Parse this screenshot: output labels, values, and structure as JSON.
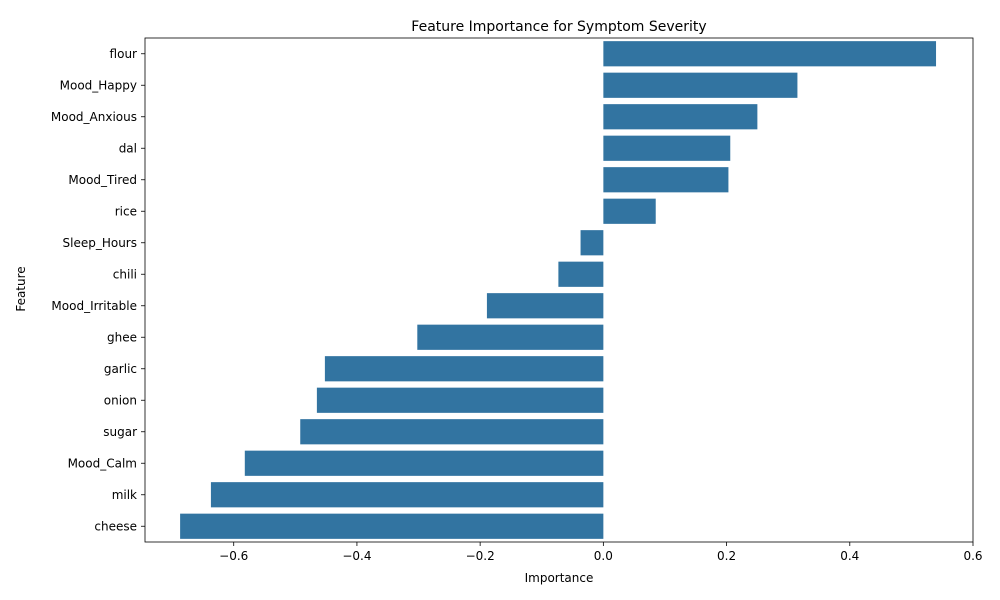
{
  "chart_data": {
    "type": "bar",
    "orientation": "horizontal",
    "title": "Feature Importance for Symptom Severity",
    "xlabel": "Importance",
    "ylabel": "Feature",
    "categories": [
      "flour",
      "Mood_Happy",
      "Mood_Anxious",
      "dal",
      "Mood_Tired",
      "rice",
      "Sleep_Hours",
      "chili",
      "Mood_Irritable",
      "ghee",
      "garlic",
      "onion",
      "sugar",
      "Mood_Calm",
      "milk",
      "cheese"
    ],
    "values": [
      0.54,
      0.315,
      0.25,
      0.206,
      0.203,
      0.085,
      -0.037,
      -0.073,
      -0.189,
      -0.302,
      -0.452,
      -0.465,
      -0.492,
      -0.582,
      -0.637,
      -0.687
    ],
    "xlim": [
      -0.744,
      0.6
    ],
    "xticks": [
      -0.6,
      -0.4,
      -0.2,
      0.0,
      0.2,
      0.4,
      0.6
    ],
    "xtick_labels": [
      "−0.6",
      "−0.4",
      "−0.2",
      "0.0",
      "0.2",
      "0.4",
      "0.6"
    ],
    "bar_color": "#3274a1",
    "grid": false
  }
}
